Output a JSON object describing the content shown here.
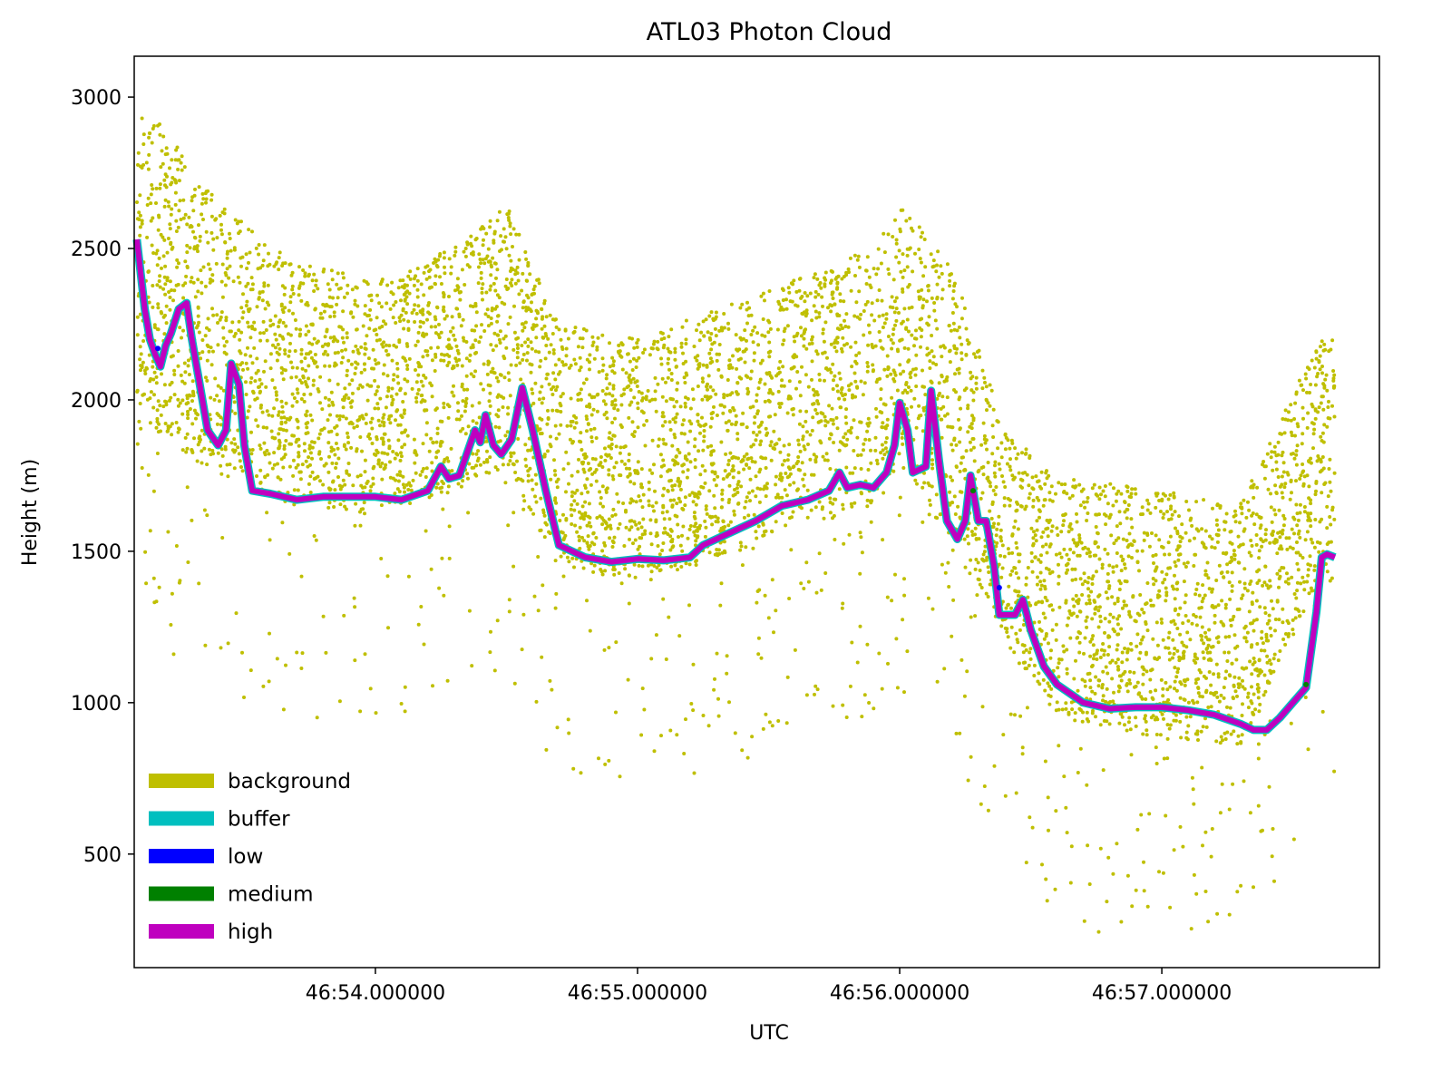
{
  "chart_data": {
    "type": "scatter",
    "title": "ATL03 Photon Cloud",
    "xlabel": "UTC",
    "ylabel": "Height (m)",
    "x_unit": "seconds past 46:53",
    "xlim": [
      53.08,
      57.83
    ],
    "ylim": [
      125,
      3135
    ],
    "x_ticks": [
      {
        "value": 54.0,
        "label": "46:54.000000"
      },
      {
        "value": 55.0,
        "label": "46:55.000000"
      },
      {
        "value": 56.0,
        "label": "46:56.000000"
      },
      {
        "value": 57.0,
        "label": "46:57.000000"
      }
    ],
    "y_ticks": [
      500,
      1000,
      1500,
      2000,
      2500,
      3000
    ],
    "legend_position": "lower-left",
    "grid": false,
    "series": [
      {
        "name": "background",
        "color": "#bfbf00"
      },
      {
        "name": "buffer",
        "color": "#00bfbf"
      },
      {
        "name": "low",
        "color": "#0000ff"
      },
      {
        "name": "medium",
        "color": "#008000"
      },
      {
        "name": "high",
        "color": "#bf00bf"
      }
    ],
    "surface_profile": [
      [
        53.09,
        2530
      ],
      [
        53.12,
        2300
      ],
      [
        53.14,
        2200
      ],
      [
        53.16,
        2150
      ],
      [
        53.18,
        2110
      ],
      [
        53.2,
        2180
      ],
      [
        53.22,
        2220
      ],
      [
        53.25,
        2300
      ],
      [
        53.28,
        2320
      ],
      [
        53.3,
        2200
      ],
      [
        53.33,
        2050
      ],
      [
        53.36,
        1900
      ],
      [
        53.4,
        1850
      ],
      [
        53.43,
        1900
      ],
      [
        53.45,
        2120
      ],
      [
        53.48,
        2050
      ],
      [
        53.5,
        1850
      ],
      [
        53.53,
        1700
      ],
      [
        53.6,
        1690
      ],
      [
        53.7,
        1670
      ],
      [
        53.8,
        1680
      ],
      [
        53.9,
        1680
      ],
      [
        54.0,
        1680
      ],
      [
        54.1,
        1670
      ],
      [
        54.2,
        1700
      ],
      [
        54.25,
        1780
      ],
      [
        54.28,
        1740
      ],
      [
        54.32,
        1750
      ],
      [
        54.36,
        1850
      ],
      [
        54.38,
        1900
      ],
      [
        54.4,
        1860
      ],
      [
        54.42,
        1950
      ],
      [
        54.45,
        1850
      ],
      [
        54.48,
        1820
      ],
      [
        54.52,
        1870
      ],
      [
        54.56,
        2040
      ],
      [
        54.6,
        1900
      ],
      [
        54.65,
        1700
      ],
      [
        54.7,
        1520
      ],
      [
        54.8,
        1480
      ],
      [
        54.9,
        1465
      ],
      [
        55.0,
        1475
      ],
      [
        55.1,
        1470
      ],
      [
        55.2,
        1480
      ],
      [
        55.25,
        1520
      ],
      [
        55.35,
        1560
      ],
      [
        55.45,
        1600
      ],
      [
        55.55,
        1650
      ],
      [
        55.65,
        1670
      ],
      [
        55.73,
        1700
      ],
      [
        55.77,
        1760
      ],
      [
        55.8,
        1710
      ],
      [
        55.85,
        1720
      ],
      [
        55.9,
        1710
      ],
      [
        55.95,
        1760
      ],
      [
        55.98,
        1850
      ],
      [
        56.0,
        1990
      ],
      [
        56.03,
        1900
      ],
      [
        56.05,
        1760
      ],
      [
        56.1,
        1780
      ],
      [
        56.12,
        2030
      ],
      [
        56.15,
        1800
      ],
      [
        56.18,
        1600
      ],
      [
        56.22,
        1540
      ],
      [
        56.25,
        1600
      ],
      [
        56.27,
        1750
      ],
      [
        56.3,
        1600
      ],
      [
        56.33,
        1600
      ],
      [
        56.36,
        1450
      ],
      [
        56.38,
        1290
      ],
      [
        56.44,
        1290
      ],
      [
        56.47,
        1340
      ],
      [
        56.5,
        1240
      ],
      [
        56.55,
        1120
      ],
      [
        56.6,
        1060
      ],
      [
        56.7,
        1000
      ],
      [
        56.8,
        980
      ],
      [
        56.9,
        985
      ],
      [
        57.0,
        985
      ],
      [
        57.1,
        975
      ],
      [
        57.2,
        960
      ],
      [
        57.3,
        930
      ],
      [
        57.35,
        910
      ],
      [
        57.4,
        910
      ],
      [
        57.45,
        950
      ],
      [
        57.5,
        1000
      ],
      [
        57.55,
        1050
      ],
      [
        57.59,
        1300
      ],
      [
        57.61,
        1480
      ],
      [
        57.63,
        1490
      ],
      [
        57.66,
        1480
      ]
    ],
    "background_envelope": [
      [
        53.15,
        1900,
        2950
      ],
      [
        53.4,
        1750,
        2650
      ],
      [
        53.7,
        1650,
        2450
      ],
      [
        54.0,
        1620,
        2400
      ],
      [
        54.3,
        1700,
        2500
      ],
      [
        54.5,
        1780,
        2650
      ],
      [
        54.7,
        1440,
        2250
      ],
      [
        55.0,
        1410,
        2200
      ],
      [
        55.3,
        1460,
        2300
      ],
      [
        55.6,
        1600,
        2400
      ],
      [
        55.9,
        1650,
        2500
      ],
      [
        56.0,
        1750,
        2650
      ],
      [
        56.2,
        1520,
        2450
      ],
      [
        56.4,
        1200,
        1900
      ],
      [
        56.6,
        950,
        1750
      ],
      [
        57.0,
        880,
        1700
      ],
      [
        57.3,
        860,
        1660
      ],
      [
        57.6,
        1400,
        2200
      ]
    ]
  }
}
